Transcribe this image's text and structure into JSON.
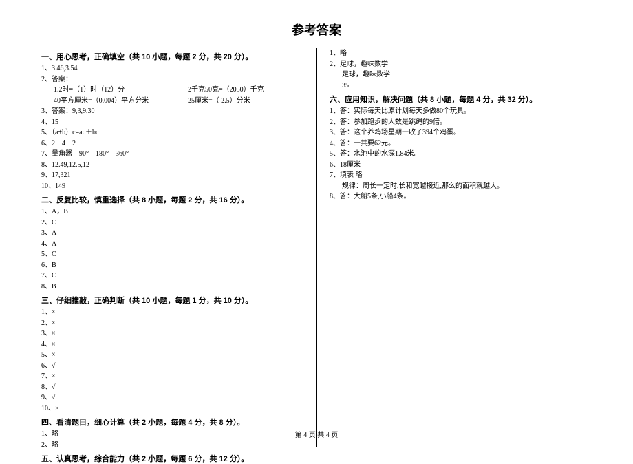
{
  "title": "参考答案",
  "footer": "第 4 页  共 4 页",
  "sections": {
    "s1": {
      "head": "一、用心思考，正确填空（共 10 小题，每题 2 分，共 20 分）。",
      "i1": "1、3.46,3.54",
      "i2": "2、答案：",
      "i2a_l": "1.2时=（1）时（12）分",
      "i2a_r": "2千克50克=（2050）千克",
      "i2b_l": "40平方厘米=（0.004）平方分米",
      "i2b_r": "25厘米=（ 2.5）分米",
      "i3": "3、答案：9,3,9,30",
      "i4": "4、15",
      "i5": "5、（a+b）c=ac＋bc",
      "i6": "6、2　4　2",
      "i7": "7、量角器　90°　180°　360°",
      "i8": "8、12.49,12.5,12",
      "i9": "9、17,321",
      "i10": "10、149"
    },
    "s2": {
      "head": "二、反复比较，慎重选择（共 8 小题，每题 2 分，共 16 分）。",
      "i1": "1、A，B",
      "i2": "2、C",
      "i3": "3、A",
      "i4": "4、A",
      "i5": "5、C",
      "i6": "6、B",
      "i7": "7、C",
      "i8": "8、B"
    },
    "s3": {
      "head": "三、仔细推敲，正确判断（共 10 小题，每题 1 分，共 10 分）。",
      "i1": "1、×",
      "i2": "2、×",
      "i3": "3、×",
      "i4": "4、×",
      "i5": "5、×",
      "i6": "6、√",
      "i7": "7、×",
      "i8": "8、√",
      "i9": "9、√",
      "i10": "10、×"
    },
    "s4": {
      "head": "四、看清题目，细心计算（共 2 小题，每题 4 分，共 8 分）。",
      "i1": "1、略",
      "i2": "2、略"
    },
    "s5": {
      "head": "五、认真思考，综合能力（共 2 小题，每题 6 分，共 12 分）。",
      "i1": "1、略",
      "i2": "2、足球，趣味数学",
      "i2b": "足球，趣味数学",
      "i2c": "35"
    },
    "s6": {
      "head": "六、应用知识，解决问题（共 8 小题，每题 4 分，共 32 分）。",
      "i1": "1、答：实际每天比原计划每天多做80个玩具。",
      "i2": "2、答：参加跑步的人数是跳绳的9倍。",
      "i3": "3、答：这个养鸡场星期一收了394个鸡蛋。",
      "i4": "4、答：一共要62元。",
      "i5": "5、答：水池中的水深1.84米。",
      "i6": "6、18厘米",
      "i7": "7、填表 略",
      "i7b": "规律：周长一定时,长和宽越接近,那么的面积就越大。",
      "i8": "8、答：大船5条,小船4条。"
    }
  }
}
